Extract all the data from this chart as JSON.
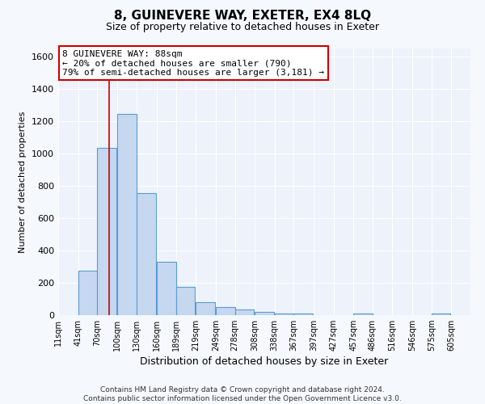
{
  "title": "8, GUINEVERE WAY, EXETER, EX4 8LQ",
  "subtitle": "Size of property relative to detached houses in Exeter",
  "xlabel": "Distribution of detached houses by size in Exeter",
  "ylabel": "Number of detached properties",
  "bar_values": [
    0,
    275,
    1035,
    1245,
    755,
    330,
    175,
    80,
    50,
    35,
    20,
    10,
    8,
    0,
    0,
    8,
    0,
    0,
    0,
    8
  ],
  "bar_left_edges": [
    11,
    41,
    70,
    100,
    130,
    160,
    189,
    219,
    249,
    278,
    308,
    338,
    367,
    397,
    427,
    457,
    486,
    516,
    546,
    575
  ],
  "bin_width": 29,
  "tick_labels": [
    "11sqm",
    "41sqm",
    "70sqm",
    "100sqm",
    "130sqm",
    "160sqm",
    "189sqm",
    "219sqm",
    "249sqm",
    "278sqm",
    "308sqm",
    "338sqm",
    "367sqm",
    "397sqm",
    "427sqm",
    "457sqm",
    "486sqm",
    "516sqm",
    "546sqm",
    "575sqm",
    "605sqm"
  ],
  "bar_color": "#c5d8f0",
  "bar_edge_color": "#5b9bd5",
  "vline_x": 88,
  "vline_color": "#cc0000",
  "ylim": [
    0,
    1650
  ],
  "yticks": [
    0,
    200,
    400,
    600,
    800,
    1000,
    1200,
    1400,
    1600
  ],
  "annotation_box_text": "8 GUINEVERE WAY: 88sqm\n← 20% of detached houses are smaller (790)\n79% of semi-detached houses are larger (3,181) →",
  "footer_line1": "Contains HM Land Registry data © Crown copyright and database right 2024.",
  "footer_line2": "Contains public sector information licensed under the Open Government Licence v3.0.",
  "plot_bg_color": "#edf2fb",
  "fig_bg_color": "#f5f8fd",
  "grid_color": "#ffffff",
  "annotation_box_color": "#ffffff",
  "annotation_box_edge_color": "#cc0000"
}
